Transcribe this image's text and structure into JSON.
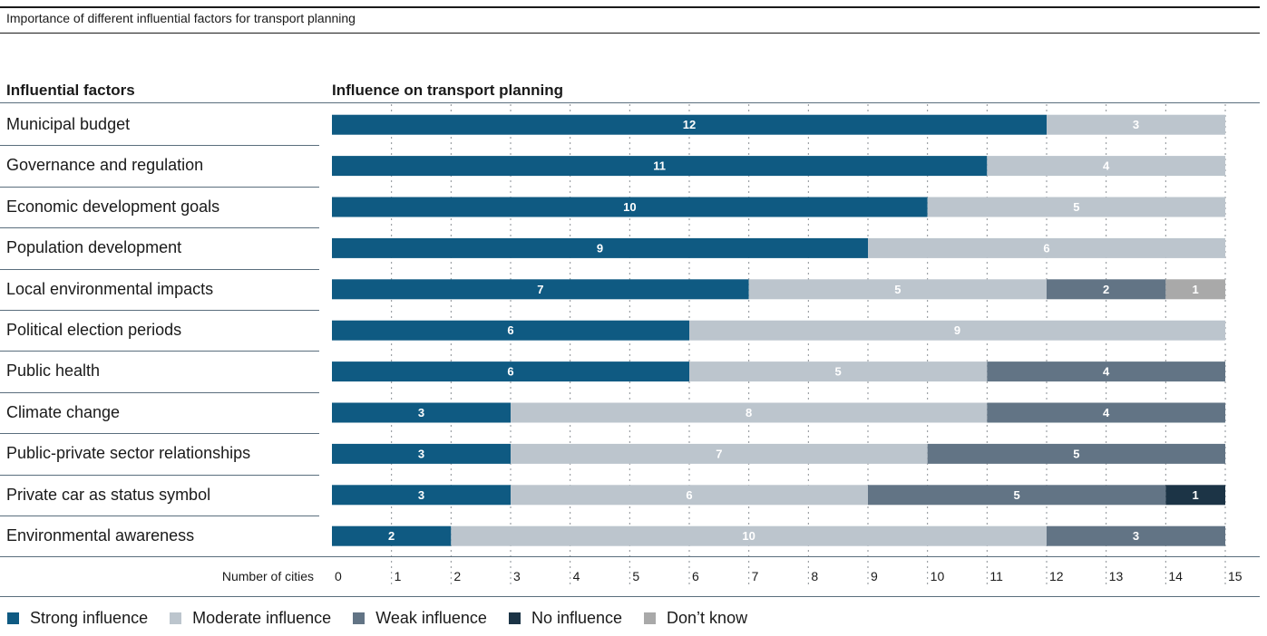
{
  "header": {
    "title": "Importance of different influential factors for transport planning",
    "factors_heading": "Influential factors",
    "influence_heading": "Influence on transport planning"
  },
  "chart_data": {
    "type": "bar",
    "orientation": "horizontal",
    "stacked": true,
    "categories": [
      "Municipal budget",
      "Governance and regulation",
      "Economic development goals",
      "Population development",
      "Local environmental impacts",
      "Political election periods",
      "Public health",
      "Climate change",
      "Public-private sector relationships",
      "Private car as status symbol",
      "Environmental awareness"
    ],
    "series": [
      {
        "name": "Strong influence",
        "color": "#0f5a82",
        "values": [
          12,
          11,
          10,
          9,
          7,
          6,
          6,
          3,
          3,
          3,
          2
        ]
      },
      {
        "name": "Moderate influence",
        "color": "#bcc5cd",
        "values": [
          3,
          4,
          5,
          6,
          5,
          9,
          5,
          8,
          7,
          6,
          10
        ]
      },
      {
        "name": "Weak influence",
        "color": "#627485",
        "values": [
          0,
          0,
          0,
          0,
          2,
          0,
          4,
          4,
          5,
          5,
          3
        ]
      },
      {
        "name": "No influence",
        "color": "#1c3446",
        "values": [
          0,
          0,
          0,
          0,
          0,
          0,
          0,
          0,
          0,
          1,
          0
        ]
      },
      {
        "name": "Don’t know",
        "color": "#a9a9a9",
        "values": [
          0,
          0,
          0,
          0,
          1,
          0,
          0,
          0,
          0,
          0,
          0
        ]
      }
    ],
    "xlabel": "Number of cities",
    "xlim": [
      0,
      15
    ],
    "xticks": [
      0,
      1,
      2,
      3,
      4,
      5,
      6,
      7,
      8,
      9,
      10,
      11,
      12,
      13,
      14,
      15
    ],
    "grid": true,
    "legend_position": "bottom-left"
  }
}
